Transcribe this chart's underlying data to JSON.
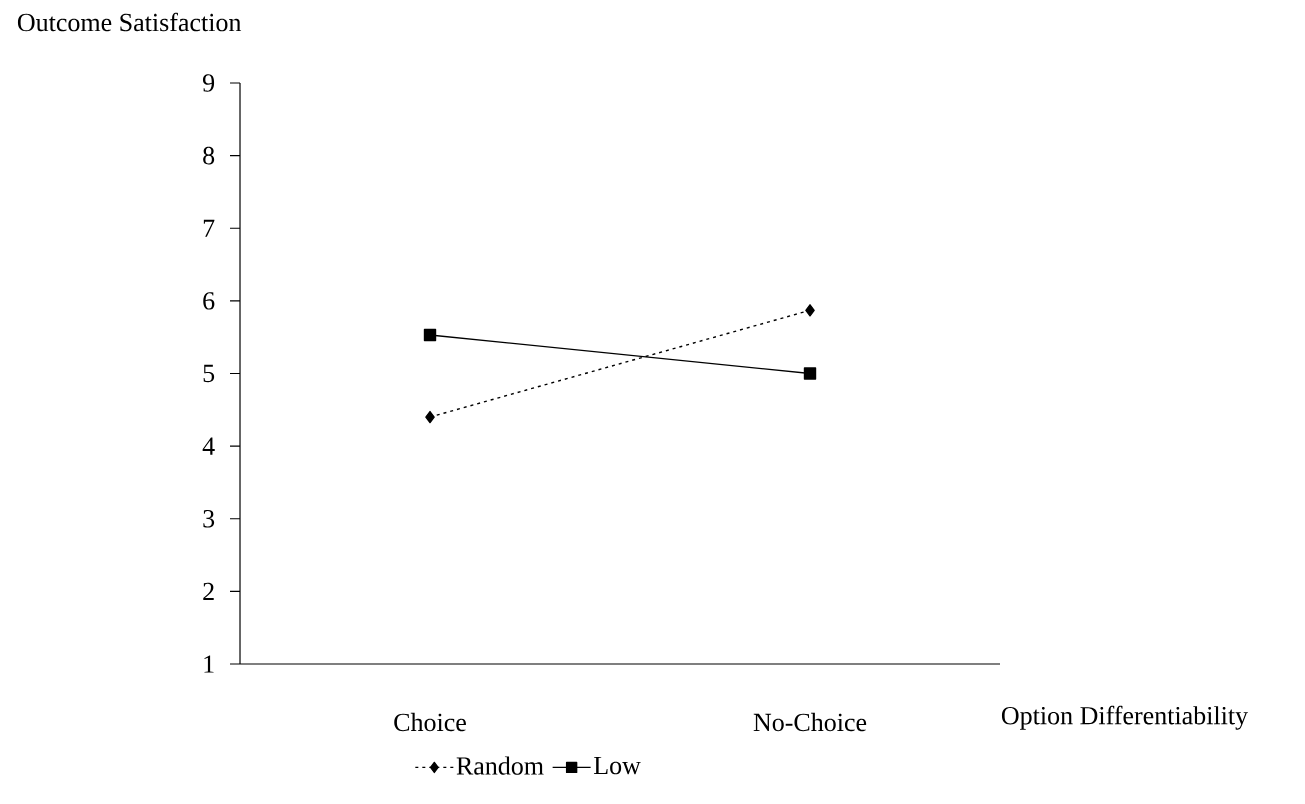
{
  "chart_data": {
    "type": "line",
    "xlabel": "Option Differentiability",
    "ylabel": "Outcome Satisfaction",
    "categories": [
      "Choice",
      "No-Choice"
    ],
    "series": [
      {
        "name": "Random",
        "color": "#000000",
        "values": [
          4.4,
          5.87
        ],
        "marker": "diamond",
        "line_style": "dashed"
      },
      {
        "name": "Low",
        "color": "#000000",
        "values": [
          5.53,
          5.0
        ],
        "marker": "square",
        "line_style": "solid"
      }
    ],
    "ylim": [
      1,
      9
    ],
    "yticks": [
      1,
      2,
      3,
      4,
      5,
      6,
      7,
      8,
      9
    ],
    "grid": false,
    "legend": "bottom"
  }
}
